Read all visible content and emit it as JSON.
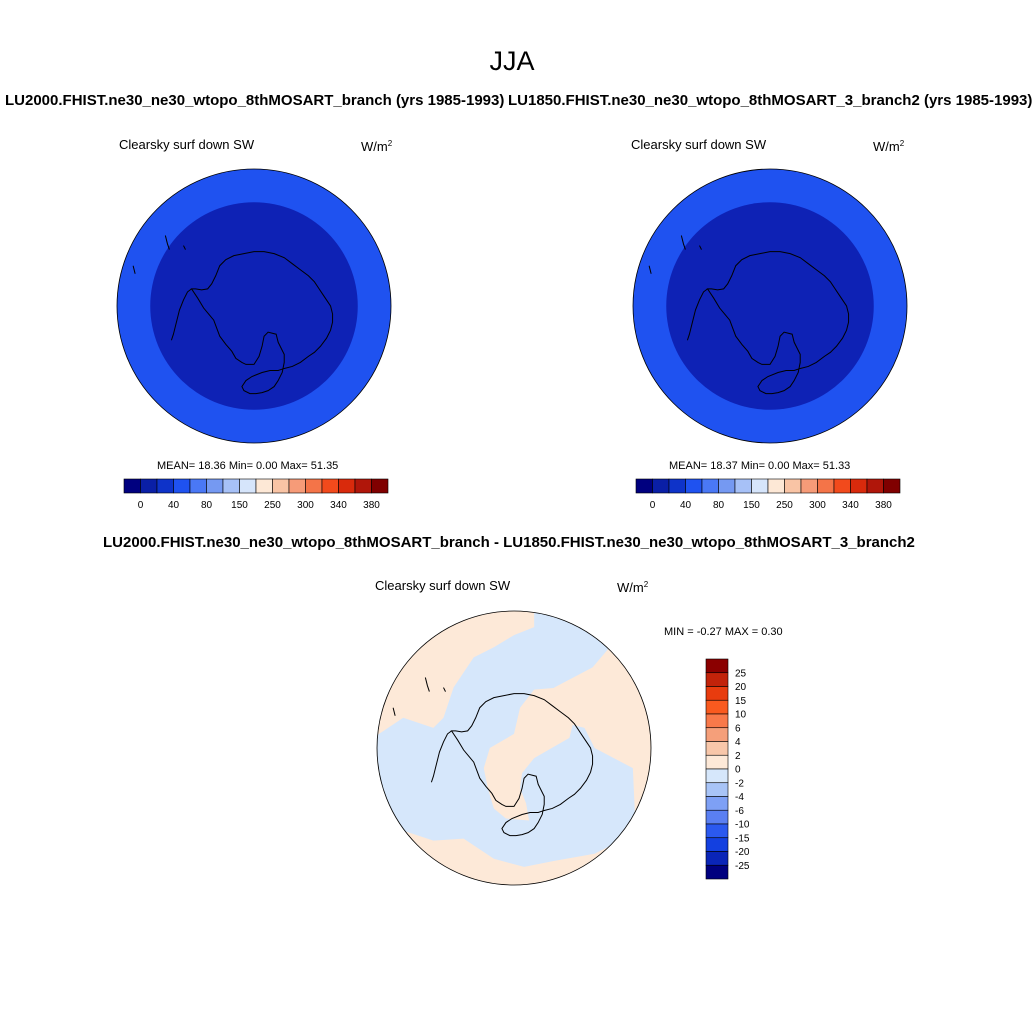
{
  "title": "JJA",
  "panels": [
    {
      "case": "LU2000.FHIST.ne30_ne30_wtopo_8thMOSART_branch (yrs 1985-1993)",
      "variable": "Clearsky surf down SW",
      "units_base": "W/m",
      "units_sup": "2",
      "stats": "MEAN=  18.36  Min=   0.00  Max=  51.35"
    },
    {
      "case": "LU1850.FHIST.ne30_ne30_wtopo_8thMOSART_3_branch2 (yrs 1985-1993)",
      "variable": "Clearsky surf down SW",
      "units_base": "W/m",
      "units_sup": "2",
      "stats": "MEAN=  18.37  Min=   0.00  Max=  51.33"
    }
  ],
  "diff_panel": {
    "title": "LU2000.FHIST.ne30_ne30_wtopo_8thMOSART_branch - LU1850.FHIST.ne30_ne30_wtopo_8thMOSART_3_branch2",
    "variable": "Clearsky surf down SW",
    "units_base": "W/m",
    "units_sup": "2",
    "stats": "MIN =  -0.27 MAX =   0.30"
  },
  "abs_colorbar": {
    "colors": [
      "#00007f",
      "#0a1fa6",
      "#0e33c9",
      "#1f52f0",
      "#4a78f5",
      "#7599f2",
      "#a7c1f7",
      "#d6e5fb",
      "#fde8d6",
      "#f9c4a5",
      "#f69b78",
      "#f47448",
      "#f24a1c",
      "#d92a0c",
      "#b0160a",
      "#800000"
    ],
    "tick_labels": [
      "0",
      "40",
      "80",
      "150",
      "250",
      "300",
      "340",
      "380"
    ]
  },
  "diff_colorbar": {
    "colors": [
      "#8b0000",
      "#c2230a",
      "#e83c0e",
      "#f95a1f",
      "#f8794a",
      "#f59f7a",
      "#f8c7aa",
      "#fde9d8",
      "#d6e7fb",
      "#a8c4f7",
      "#7ea0f5",
      "#5a7ff2",
      "#2b59ef",
      "#1340e0",
      "#0a25b8",
      "#00007f"
    ],
    "tick_labels": [
      "25",
      "20",
      "15",
      "10",
      "6",
      "4",
      "2",
      "0",
      "-2",
      "-4",
      "-6",
      "-10",
      "-15",
      "-20",
      "-25"
    ]
  },
  "map_colors": {
    "outer_ring": "#1f52f0",
    "interior": "#0e22b5",
    "diff_positive": "#fde9d8",
    "diff_negative": "#d6e7fb"
  }
}
